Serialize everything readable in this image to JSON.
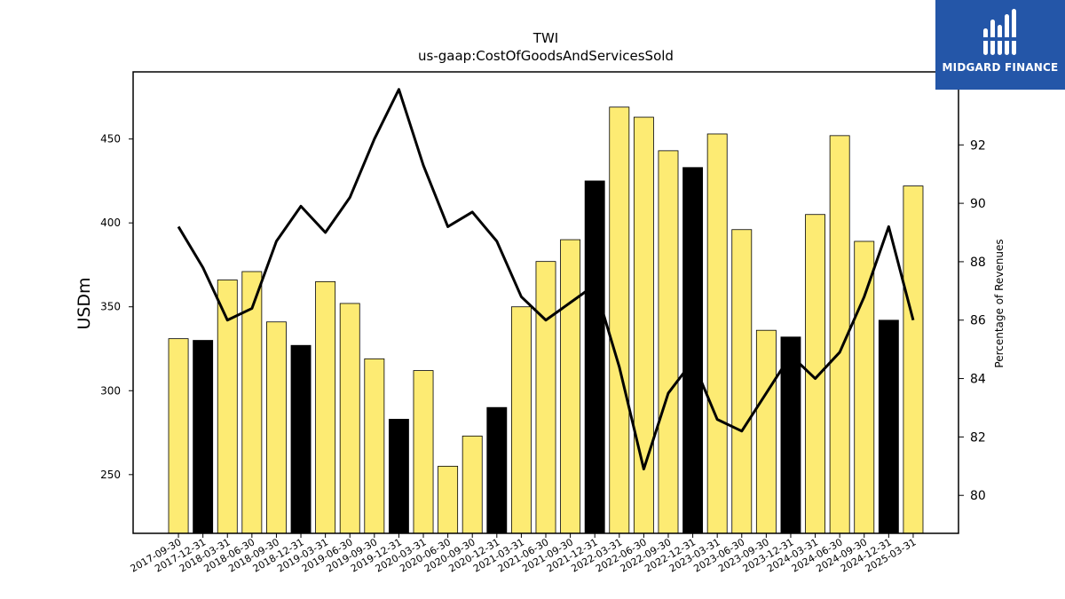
{
  "logo": {
    "text": "MIDGARD FINANCE",
    "icon": "midgard-logo-icon",
    "background": "#2456a8"
  },
  "chart_data": {
    "type": "bar",
    "title": "TWI",
    "subtitle": "us-gaap:CostOfGoodsAndServicesSold",
    "ylabel": "USDm",
    "y2label": "Percentage of Revenues",
    "ylim": [
      215,
      490
    ],
    "y2lim": [
      78.7,
      94.5
    ],
    "yticks": [
      250,
      300,
      350,
      400,
      450
    ],
    "y2ticks": [
      80,
      82,
      84,
      86,
      88,
      90,
      92
    ],
    "grid": false,
    "colors": {
      "annual": "#000000",
      "quarter": "#fdeb73",
      "line": "#000000"
    },
    "categories": [
      "2017-09-30",
      "2017-12-31",
      "2018-03-31",
      "2018-06-30",
      "2018-09-30",
      "2018-12-31",
      "2019-03-31",
      "2019-06-30",
      "2019-09-30",
      "2019-12-31",
      "2020-03-31",
      "2020-06-30",
      "2020-09-30",
      "2020-12-31",
      "2021-03-31",
      "2021-06-30",
      "2021-09-30",
      "2021-12-31",
      "2022-03-31",
      "2022-06-30",
      "2022-09-30",
      "2022-12-31",
      "2023-03-31",
      "2023-06-30",
      "2023-09-30",
      "2023-12-31",
      "2024-03-31",
      "2024-06-30",
      "2024-09-30",
      "2024-12-31",
      "2025-03-31"
    ],
    "series": [
      {
        "type": "bar",
        "values": [
          331,
          330,
          366,
          371,
          341,
          327,
          365,
          352,
          319,
          283,
          312,
          255,
          273,
          290,
          350,
          377,
          390,
          425,
          469,
          463,
          443,
          433,
          453,
          396,
          336,
          332,
          405,
          452,
          389,
          342,
          422
        ],
        "highlight": [
          false,
          true,
          false,
          false,
          false,
          true,
          false,
          false,
          false,
          true,
          false,
          false,
          false,
          true,
          false,
          false,
          false,
          true,
          false,
          false,
          false,
          true,
          false,
          false,
          false,
          true,
          false,
          false,
          false,
          true,
          false
        ]
      },
      {
        "type": "line",
        "axis": "right",
        "values": [
          89.2,
          87.8,
          86.0,
          86.4,
          88.7,
          89.9,
          89.0,
          90.2,
          92.2,
          93.9,
          91.3,
          89.2,
          89.7,
          88.7,
          86.8,
          86.0,
          86.6,
          87.2,
          84.4,
          80.9,
          83.5,
          84.6,
          82.6,
          82.2,
          83.5,
          84.8,
          84.0,
          84.9,
          86.8,
          89.2,
          86.0
        ]
      }
    ]
  }
}
